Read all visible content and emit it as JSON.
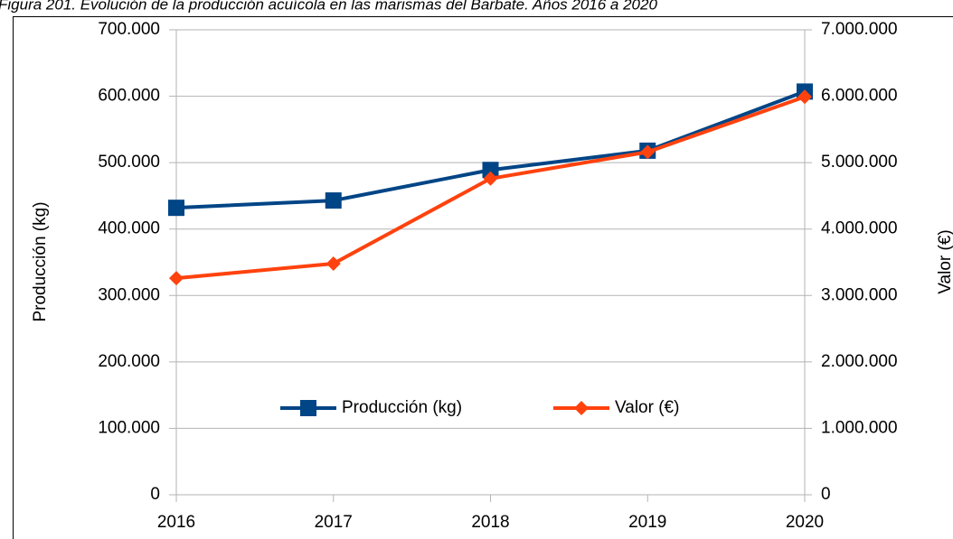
{
  "chart_data": {
    "type": "line",
    "title": "Figura 201. Evolución de la producción acuícola en las marismas del Barbate. Años 2016 a 2020",
    "categories": [
      "2016",
      "2017",
      "2018",
      "2019",
      "2020"
    ],
    "series": [
      {
        "name": "Producción (kg)",
        "color": "#004586",
        "marker": "square",
        "values": [
          432000,
          443000,
          489000,
          518000,
          607000
        ]
      },
      {
        "name": "Valor (€)",
        "color": "#ff420e",
        "marker": "diamond",
        "axis": "y2",
        "values": [
          3260000,
          3480000,
          4760000,
          5160000,
          5990000
        ]
      }
    ],
    "ylabel": "Producción (kg)",
    "y2label": "Valor (€)",
    "ylim": [
      0,
      700000
    ],
    "yticks": [
      0,
      {
        "value": 100000,
        "label": "100.000"
      },
      {
        "value": 200000,
        "label": "200.000"
      },
      {
        "value": 300000,
        "label": "300.000"
      },
      {
        "value": 400000,
        "label": "400.000"
      },
      {
        "value": 500000,
        "label": "500.000"
      },
      {
        "value": 600000,
        "label": "600.000"
      },
      {
        "value": 700000,
        "label": "700.000"
      }
    ],
    "y2lim": [
      0,
      7000000
    ],
    "y2ticks": [
      0,
      {
        "value": 1000000,
        "label": "1.000.000"
      },
      {
        "value": 2000000,
        "label": "2.000.000"
      },
      {
        "value": 3000000,
        "label": "3.000.000"
      },
      {
        "value": 4000000,
        "label": "4.000.000"
      },
      {
        "value": 5000000,
        "label": "5.000.000"
      },
      {
        "value": 6000000,
        "label": "6.000.000"
      },
      {
        "value": 7000000,
        "label": "7.000.000"
      }
    ],
    "grid": true,
    "legend": "center"
  }
}
